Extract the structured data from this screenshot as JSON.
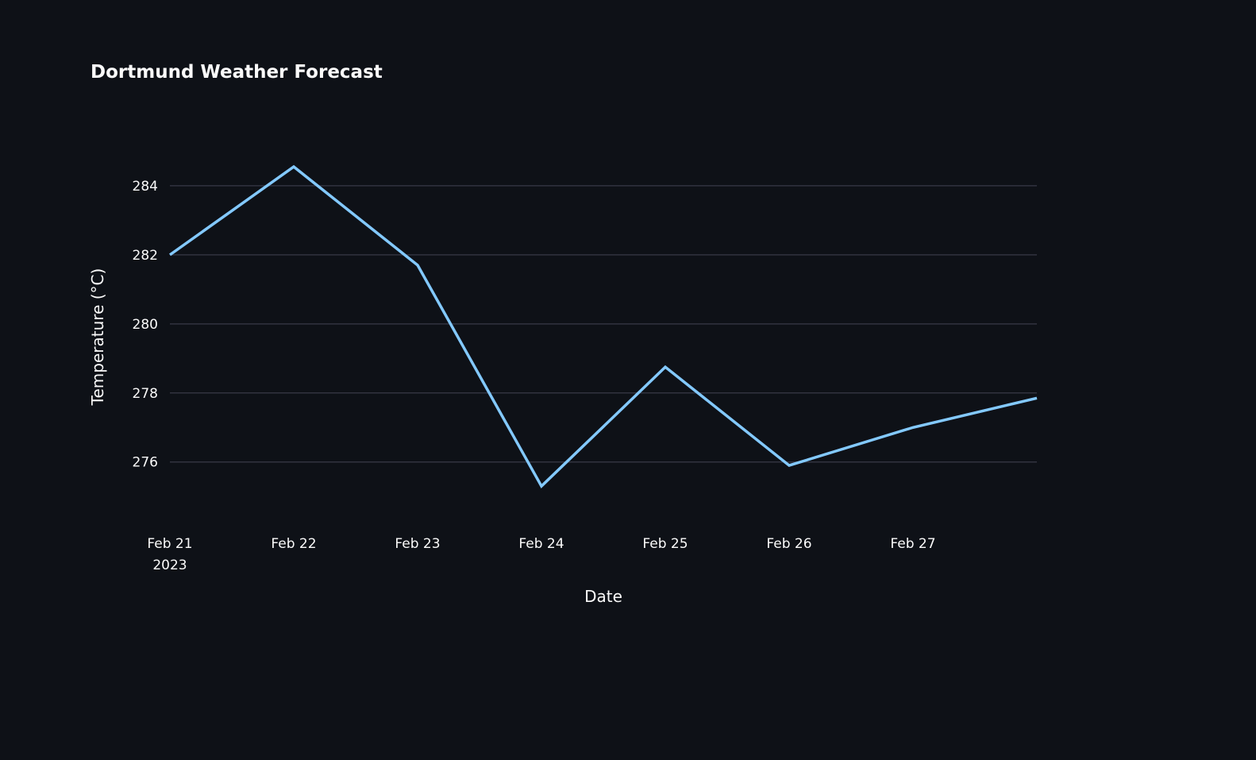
{
  "chart_data": {
    "type": "line",
    "title": "Dortmund Weather Forecast",
    "xlabel": "Date",
    "ylabel": "Temperature (°C)",
    "x": [
      "2023-02-21",
      "2023-02-22",
      "2023-02-23",
      "2023-02-24",
      "2023-02-25",
      "2023-02-26",
      "2023-02-27",
      "2023-02-28"
    ],
    "x_tick_labels": [
      {
        "date": "2023-02-21",
        "label": "Feb 21",
        "sublabel": "2023"
      },
      {
        "date": "2023-02-22",
        "label": "Feb 22",
        "sublabel": ""
      },
      {
        "date": "2023-02-23",
        "label": "Feb 23",
        "sublabel": ""
      },
      {
        "date": "2023-02-24",
        "label": "Feb 24",
        "sublabel": ""
      },
      {
        "date": "2023-02-25",
        "label": "Feb 25",
        "sublabel": ""
      },
      {
        "date": "2023-02-26",
        "label": "Feb 26",
        "sublabel": ""
      },
      {
        "date": "2023-02-27",
        "label": "Feb 27",
        "sublabel": ""
      }
    ],
    "y_ticks": [
      276,
      278,
      280,
      282,
      284
    ],
    "series": [
      {
        "values": [
          282.0,
          284.55,
          281.7,
          275.3,
          278.75,
          275.9,
          277.0,
          277.85
        ],
        "color": "#83c9ff"
      }
    ],
    "xlim": [
      "2023-02-21",
      "2023-02-28"
    ],
    "ylim": [
      274.2,
      285.7
    ],
    "grid": "horizontal",
    "legend": "none"
  },
  "colors": {
    "background": "#0e1117",
    "text": "#fafafa",
    "grid": "#31333f",
    "line": "#83c9ff"
  }
}
